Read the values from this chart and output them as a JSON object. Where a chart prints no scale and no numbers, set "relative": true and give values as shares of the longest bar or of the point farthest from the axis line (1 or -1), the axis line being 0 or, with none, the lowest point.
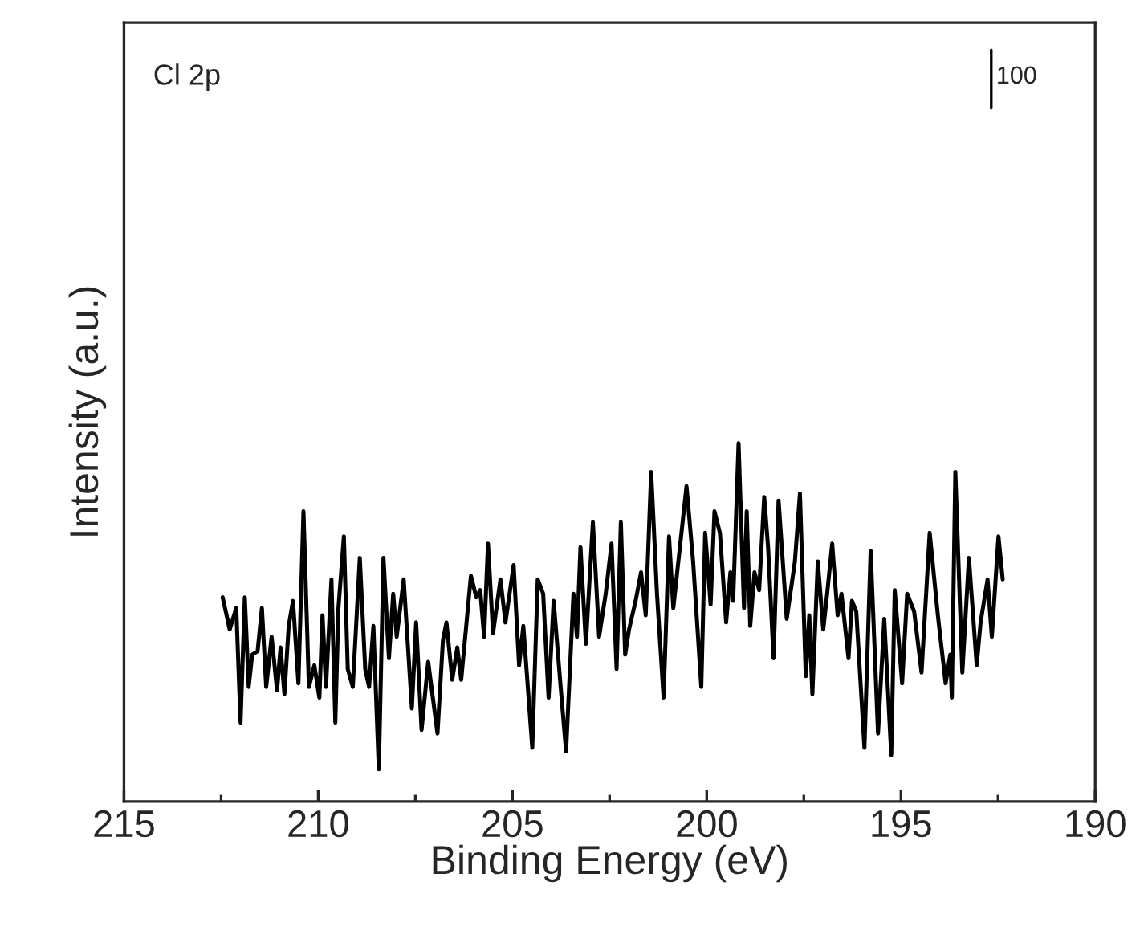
{
  "chart_data": {
    "type": "line",
    "relative": true,
    "xlabel": "Binding Energy (eV)",
    "ylabel": "Intensity (a.u.)",
    "annotations": [
      "Cl 2p",
      "100"
    ],
    "xlim": [
      215,
      190
    ],
    "xticks": [
      215,
      {
        "value": 212.5,
        "label": null
      },
      210,
      {
        "value": 207.5,
        "label": null
      },
      205,
      {
        "value": 202.5,
        "label": null
      },
      200,
      {
        "value": 197.5,
        "label": null
      },
      195,
      {
        "value": 192.5,
        "label": null
      },
      190
    ],
    "tick_labels": "x",
    "grid": false,
    "legend": false,
    "marker": "none",
    "line_style": "solid",
    "series": [
      {
        "color": "#000000",
        "x": [
          212.46,
          212.28,
          212.11,
          212.0,
          211.89,
          211.79,
          211.7,
          211.56,
          211.45,
          211.34,
          211.2,
          211.06,
          210.97,
          210.87,
          210.76,
          210.65,
          210.51,
          210.38,
          210.24,
          210.1,
          209.97,
          209.89,
          209.8,
          209.66,
          209.56,
          209.48,
          209.34,
          209.24,
          209.11,
          208.93,
          208.79,
          208.69,
          208.58,
          208.44,
          208.32,
          208.18,
          208.07,
          207.98,
          207.8,
          207.59,
          207.48,
          207.34,
          207.17,
          206.93,
          206.79,
          206.7,
          206.55,
          206.42,
          206.32,
          206.07,
          205.93,
          205.83,
          205.73,
          205.63,
          205.5,
          205.31,
          205.18,
          204.97,
          204.83,
          204.72,
          204.49,
          204.35,
          204.21,
          204.07,
          203.94,
          203.76,
          203.62,
          203.43,
          203.34,
          203.25,
          203.11,
          202.93,
          202.77,
          202.6,
          202.45,
          202.32,
          202.21,
          202.1,
          202.0,
          201.83,
          201.69,
          201.57,
          201.43,
          201.28,
          201.11,
          200.97,
          200.86,
          200.66,
          200.52,
          200.35,
          200.14,
          200.04,
          199.9,
          199.8,
          199.66,
          199.5,
          199.39,
          199.32,
          199.18,
          199.04,
          198.97,
          198.88,
          198.77,
          198.65,
          198.52,
          198.42,
          198.28,
          198.15,
          197.94,
          197.73,
          197.6,
          197.45,
          197.36,
          197.28,
          197.14,
          197.0,
          196.9,
          196.77,
          196.63,
          196.53,
          196.35,
          196.26,
          196.15,
          195.94,
          195.78,
          195.59,
          195.43,
          195.25,
          195.16,
          194.97,
          194.84,
          194.66,
          194.47,
          194.26,
          194.05,
          193.85,
          193.73,
          193.69,
          193.6,
          193.42,
          193.25,
          193.05,
          192.95,
          192.77,
          192.66,
          192.49,
          192.38
        ],
        "values": [
          0.57,
          0.48,
          0.54,
          0.22,
          0.57,
          0.32,
          0.41,
          0.42,
          0.54,
          0.32,
          0.46,
          0.31,
          0.43,
          0.3,
          0.49,
          0.56,
          0.33,
          0.81,
          0.32,
          0.38,
          0.29,
          0.52,
          0.32,
          0.62,
          0.22,
          0.54,
          0.74,
          0.37,
          0.32,
          0.68,
          0.37,
          0.32,
          0.49,
          0.09,
          0.68,
          0.4,
          0.58,
          0.46,
          0.62,
          0.26,
          0.5,
          0.2,
          0.39,
          0.19,
          0.45,
          0.5,
          0.34,
          0.43,
          0.34,
          0.63,
          0.57,
          0.59,
          0.46,
          0.72,
          0.47,
          0.62,
          0.5,
          0.66,
          0.38,
          0.49,
          0.15,
          0.62,
          0.58,
          0.29,
          0.56,
          0.32,
          0.14,
          0.58,
          0.46,
          0.71,
          0.44,
          0.78,
          0.46,
          0.58,
          0.72,
          0.37,
          0.78,
          0.41,
          0.48,
          0.56,
          0.64,
          0.52,
          0.92,
          0.58,
          0.29,
          0.74,
          0.54,
          0.74,
          0.88,
          0.67,
          0.32,
          0.75,
          0.55,
          0.81,
          0.75,
          0.5,
          0.64,
          0.56,
          1.0,
          0.54,
          0.81,
          0.49,
          0.64,
          0.59,
          0.85,
          0.71,
          0.4,
          0.84,
          0.51,
          0.67,
          0.86,
          0.35,
          0.52,
          0.3,
          0.67,
          0.48,
          0.58,
          0.72,
          0.52,
          0.58,
          0.4,
          0.56,
          0.53,
          0.15,
          0.7,
          0.19,
          0.51,
          0.13,
          0.59,
          0.33,
          0.58,
          0.53,
          0.36,
          0.75,
          0.52,
          0.33,
          0.41,
          0.29,
          0.92,
          0.36,
          0.68,
          0.38,
          0.5,
          0.62,
          0.46,
          0.74,
          0.62
        ]
      }
    ]
  }
}
